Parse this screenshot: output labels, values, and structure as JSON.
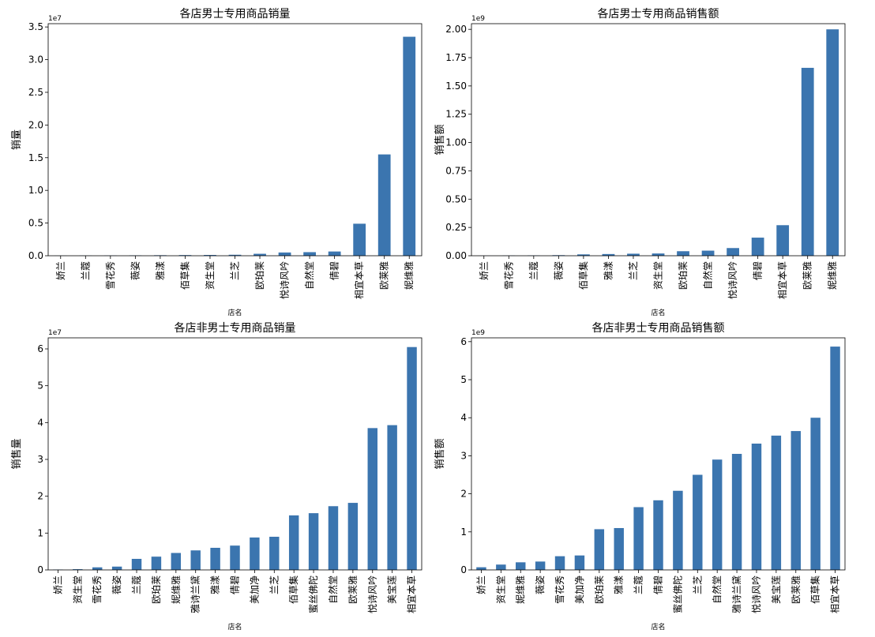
{
  "colors": {
    "bar": "#3b75af",
    "axis": "#000000"
  },
  "chart_data": [
    {
      "type": "bar",
      "title": "各店男士专用商品销量",
      "xlabel": "店名",
      "ylabel": "销量",
      "scale_label": "1e7",
      "scale": 10000000,
      "ylim": [
        0,
        3.55
      ],
      "yticks": [
        0.0,
        0.5,
        1.0,
        1.5,
        2.0,
        2.5,
        3.0,
        3.5
      ],
      "ytick_labels": [
        "0.0",
        "0.5",
        "1.0",
        "1.5",
        "2.0",
        "2.5",
        "3.0",
        "3.5"
      ],
      "categories": [
        "娇兰",
        "兰蔻",
        "雪花秀",
        "薇姿",
        "雅漾",
        "佰草集",
        "资生堂",
        "兰芝",
        "欧珀莱",
        "悦诗风吟",
        "自然堂",
        "倩碧",
        "相宜本草",
        "欧莱雅",
        "妮维雅"
      ],
      "values": [
        0.002,
        0.003,
        0.004,
        0.006,
        0.008,
        0.01,
        0.012,
        0.015,
        0.03,
        0.05,
        0.055,
        0.065,
        0.49,
        1.55,
        3.35
      ]
    },
    {
      "type": "bar",
      "title": "各店男士专用商品销售额",
      "xlabel": "店名",
      "ylabel": "销售额",
      "scale_label": "1e9",
      "scale": 1000000000,
      "ylim": [
        0,
        2.05
      ],
      "yticks": [
        0.0,
        0.25,
        0.5,
        0.75,
        1.0,
        1.25,
        1.5,
        1.75,
        2.0
      ],
      "ytick_labels": [
        "0.00",
        "0.25",
        "0.50",
        "0.75",
        "1.00",
        "1.25",
        "1.50",
        "1.75",
        "2.00"
      ],
      "categories": [
        "娇兰",
        "雪花秀",
        "兰蔻",
        "薇姿",
        "佰草集",
        "雅漾",
        "兰芝",
        "资生堂",
        "欧珀莱",
        "自然堂",
        "悦诗风吟",
        "倩碧",
        "相宜本草",
        "欧莱雅",
        "妮维雅"
      ],
      "values": [
        0.001,
        0.002,
        0.003,
        0.005,
        0.012,
        0.015,
        0.018,
        0.02,
        0.04,
        0.045,
        0.068,
        0.16,
        0.27,
        1.66,
        2.0
      ]
    },
    {
      "type": "bar",
      "title": "各店非男士专用商品销量",
      "xlabel": "店名",
      "ylabel": "销售量",
      "scale_label": "1e7",
      "scale": 10000000,
      "ylim": [
        0,
        6.3
      ],
      "yticks": [
        0,
        1,
        2,
        3,
        4,
        5,
        6
      ],
      "ytick_labels": [
        "0",
        "1",
        "2",
        "3",
        "4",
        "5",
        "6"
      ],
      "categories": [
        "娇兰",
        "资生堂",
        "雪花秀",
        "薇姿",
        "兰蔻",
        "欧珀莱",
        "妮维雅",
        "雅诗兰黛",
        "雅漾",
        "倩碧",
        "美加净",
        "兰芝",
        "佰草集",
        "蜜丝佛陀",
        "自然堂",
        "欧莱雅",
        "悦诗风吟",
        "美宝莲",
        "相宜本草"
      ],
      "values": [
        0.01,
        0.02,
        0.07,
        0.09,
        0.3,
        0.36,
        0.46,
        0.53,
        0.6,
        0.66,
        0.88,
        0.9,
        1.48,
        1.54,
        1.73,
        1.82,
        3.85,
        3.93,
        6.05
      ]
    },
    {
      "type": "bar",
      "title": "各店非男士专用商品销售额",
      "xlabel": "店名",
      "ylabel": "销售额",
      "scale_label": "1e9",
      "scale": 1000000000,
      "ylim": [
        0,
        6.1
      ],
      "yticks": [
        0,
        1,
        2,
        3,
        4,
        5,
        6
      ],
      "ytick_labels": [
        "0",
        "1",
        "2",
        "3",
        "4",
        "5",
        "6"
      ],
      "categories": [
        "娇兰",
        "资生堂",
        "妮维雅",
        "薇姿",
        "雪花秀",
        "美加净",
        "欧珀莱",
        "雅漾",
        "兰蔻",
        "倩碧",
        "蜜丝佛陀",
        "兰芝",
        "自然堂",
        "雅诗兰黛",
        "悦诗风吟",
        "美宝莲",
        "欧莱雅",
        "佰草集",
        "相宜本草"
      ],
      "values": [
        0.07,
        0.14,
        0.2,
        0.22,
        0.36,
        0.38,
        1.07,
        1.1,
        1.65,
        1.83,
        2.08,
        2.5,
        2.9,
        3.05,
        3.32,
        3.53,
        3.65,
        4.0,
        5.87
      ]
    }
  ]
}
